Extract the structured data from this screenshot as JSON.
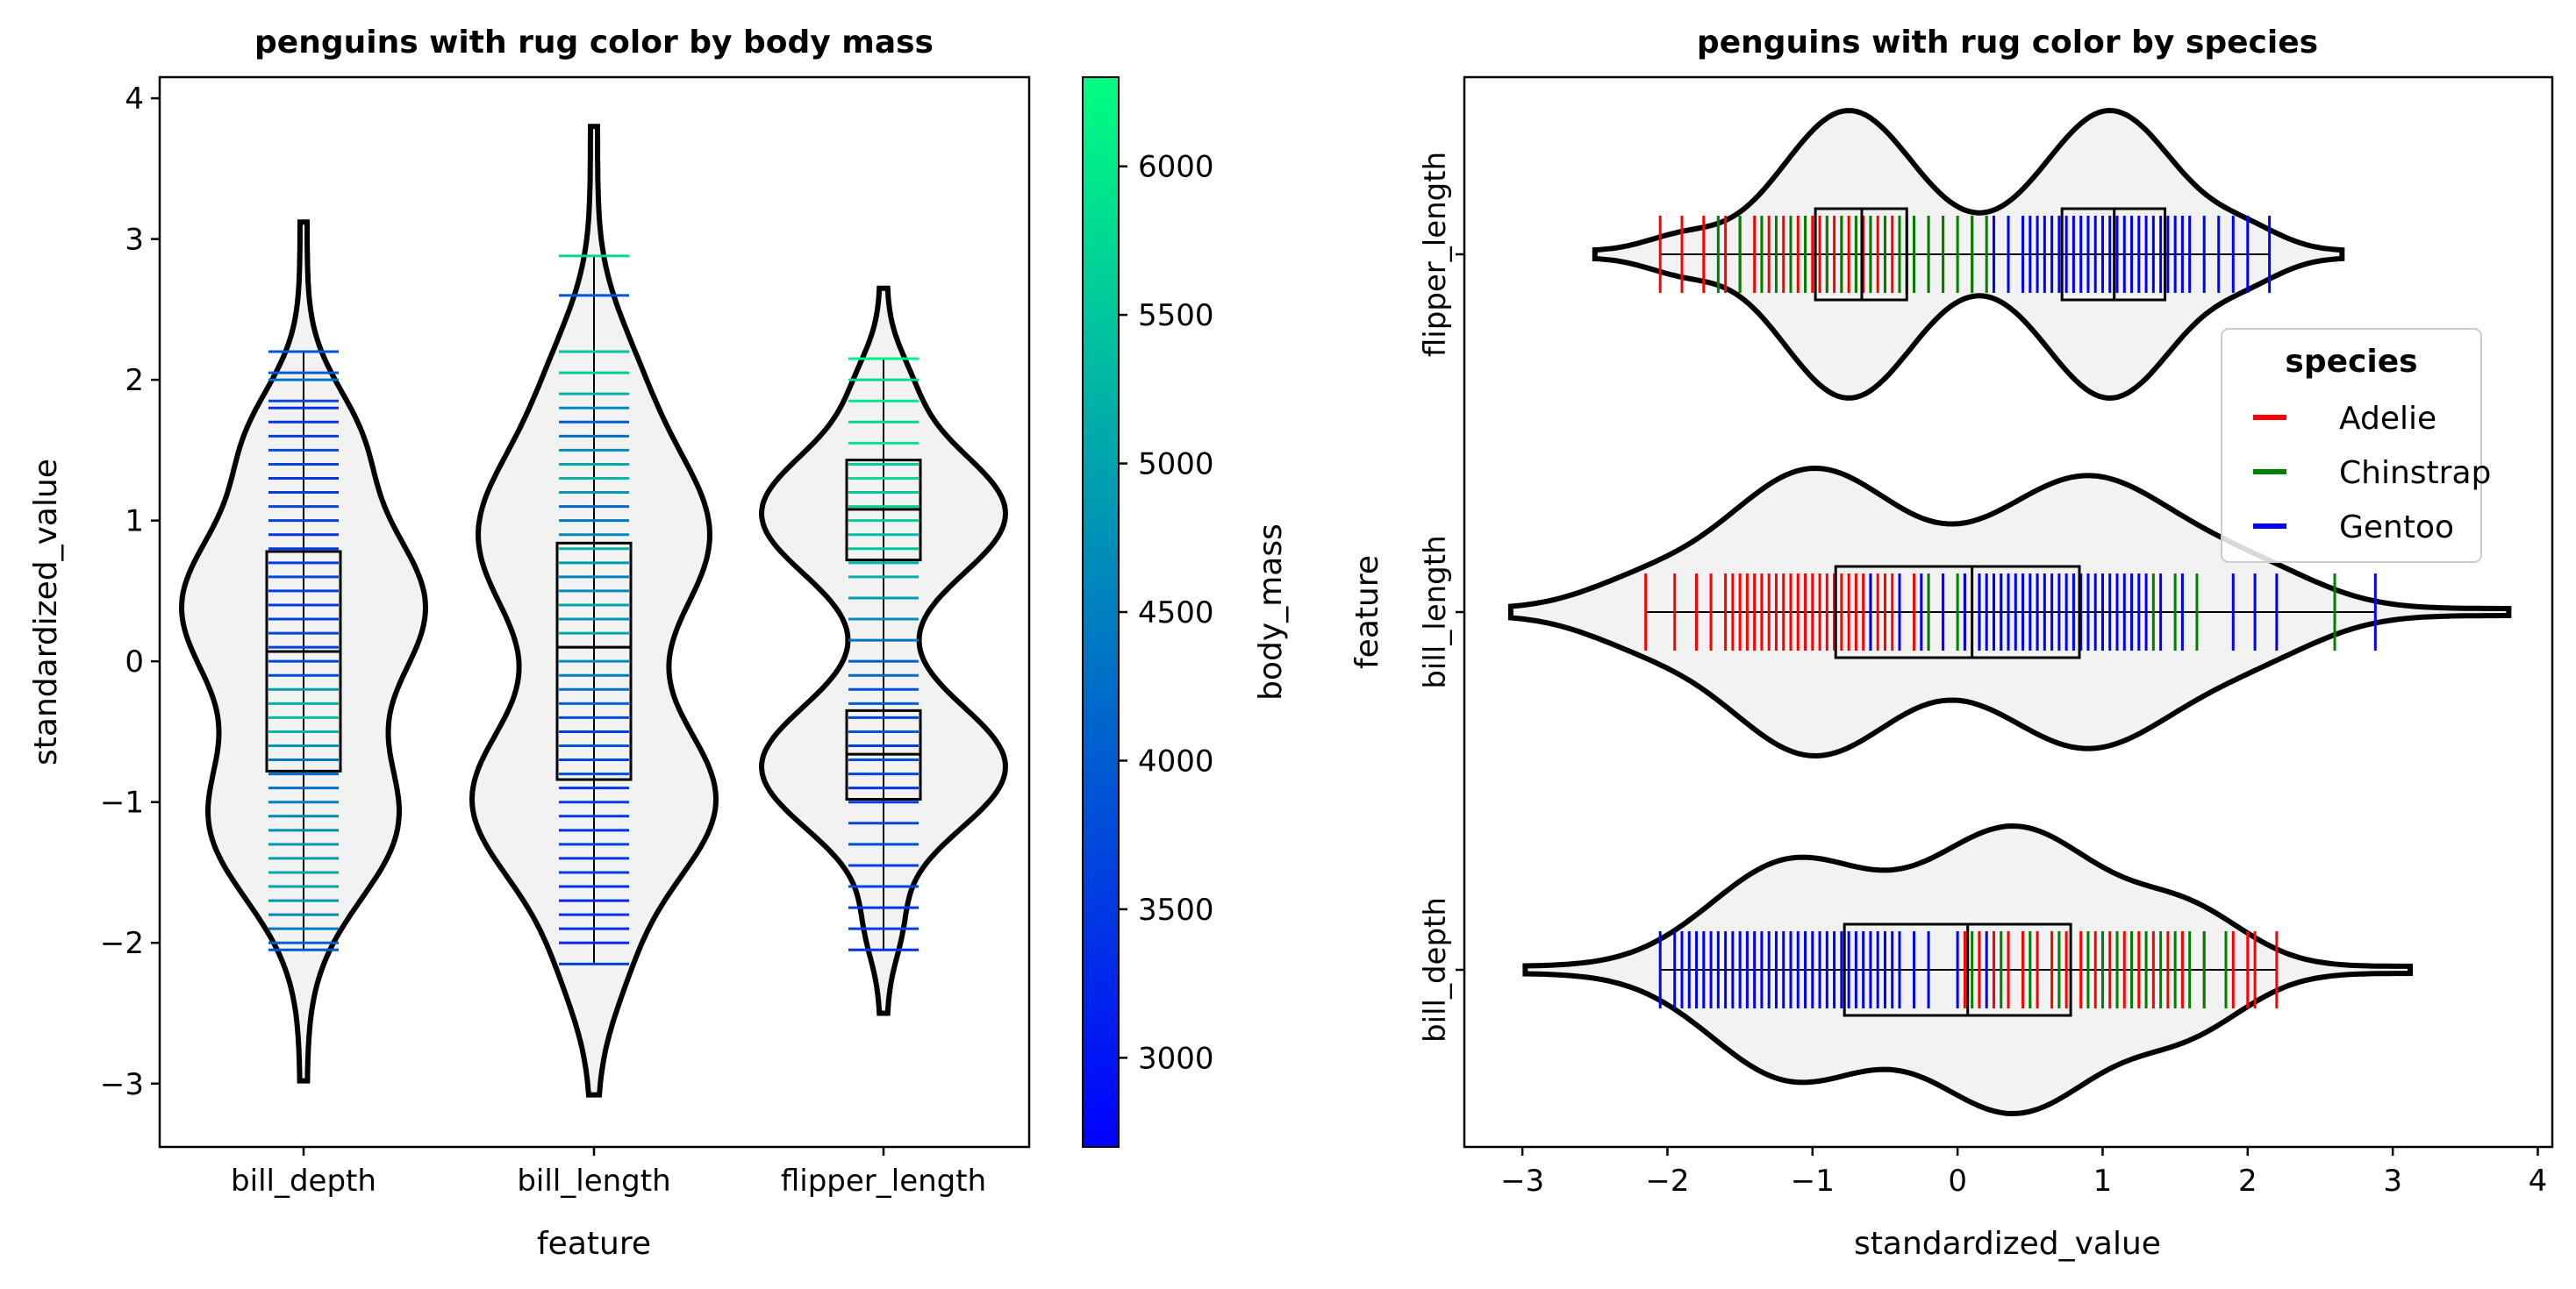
{
  "chart_data": [
    {
      "type": "violin",
      "title": "penguins with rug color by body mass",
      "orientation": "vertical",
      "xlabel": "feature",
      "ylabel": "standardized_value",
      "categories": [
        "bill_depth",
        "bill_length",
        "flipper_length"
      ],
      "ylim": [
        -3.45,
        4.15
      ],
      "yticks": [
        -3,
        -2,
        -1,
        0,
        1,
        2,
        3,
        4
      ],
      "ytick_labels": [
        "−3",
        "−2",
        "−1",
        "0",
        "1",
        "2",
        "3",
        "4"
      ],
      "rug_color_variable": "body_mass",
      "violins": [
        {
          "category": "bill_depth",
          "min": -2.05,
          "max": 2.2,
          "q1": -0.78,
          "median": 0.07,
          "q3": 0.78,
          "tail_low": -2.98,
          "tail_high": 3.12,
          "rug": [
            [
              -2.05,
              3900
            ],
            [
              -2.0,
              4100
            ],
            [
              -1.9,
              4400
            ],
            [
              -1.8,
              4600
            ],
            [
              -1.7,
              4800
            ],
            [
              -1.6,
              5000
            ],
            [
              -1.5,
              5100
            ],
            [
              -1.4,
              4900
            ],
            [
              -1.3,
              4800
            ],
            [
              -1.2,
              4700
            ],
            [
              -1.1,
              4600
            ],
            [
              -1.0,
              4500
            ],
            [
              -0.9,
              4300
            ],
            [
              -0.8,
              4200
            ],
            [
              -0.7,
              4400
            ],
            [
              -0.6,
              4800
            ],
            [
              -0.5,
              5300
            ],
            [
              -0.4,
              5400
            ],
            [
              -0.3,
              5200
            ],
            [
              -0.2,
              4900
            ],
            [
              -0.1,
              3800
            ],
            [
              0.0,
              3700
            ],
            [
              0.1,
              3600
            ],
            [
              0.2,
              3700
            ],
            [
              0.3,
              3600
            ],
            [
              0.4,
              3500
            ],
            [
              0.5,
              3600
            ],
            [
              0.6,
              3700
            ],
            [
              0.7,
              3600
            ],
            [
              0.8,
              3500
            ],
            [
              0.9,
              3400
            ],
            [
              1.0,
              3600
            ],
            [
              1.1,
              3700
            ],
            [
              1.2,
              3600
            ],
            [
              1.3,
              3500
            ],
            [
              1.4,
              3700
            ],
            [
              1.5,
              3800
            ],
            [
              1.6,
              3600
            ],
            [
              1.7,
              3500
            ],
            [
              1.8,
              3400
            ],
            [
              1.85,
              3700
            ],
            [
              2.0,
              4300
            ],
            [
              2.05,
              4000
            ],
            [
              2.2,
              3900
            ]
          ]
        },
        {
          "category": "bill_length",
          "min": -2.15,
          "max": 2.88,
          "q1": -0.84,
          "median": 0.1,
          "q3": 0.84,
          "tail_low": -3.08,
          "tail_high": 3.8,
          "rug": [
            [
              -2.15,
              3600
            ],
            [
              -2.0,
              3300
            ],
            [
              -1.9,
              3400
            ],
            [
              -1.8,
              3500
            ],
            [
              -1.7,
              3300
            ],
            [
              -1.6,
              3400
            ],
            [
              -1.5,
              3600
            ],
            [
              -1.4,
              3500
            ],
            [
              -1.3,
              3700
            ],
            [
              -1.2,
              3400
            ],
            [
              -1.1,
              3500
            ],
            [
              -1.0,
              3600
            ],
            [
              -0.9,
              3500
            ],
            [
              -0.8,
              3800
            ],
            [
              -0.7,
              3700
            ],
            [
              -0.6,
              3900
            ],
            [
              -0.5,
              3600
            ],
            [
              -0.4,
              3800
            ],
            [
              -0.3,
              4100
            ],
            [
              -0.2,
              4300
            ],
            [
              -0.1,
              4500
            ],
            [
              0.0,
              4700
            ],
            [
              0.1,
              4900
            ],
            [
              0.2,
              5100
            ],
            [
              0.3,
              4800
            ],
            [
              0.4,
              5000
            ],
            [
              0.5,
              4700
            ],
            [
              0.6,
              4500
            ],
            [
              0.7,
              4900
            ],
            [
              0.8,
              5200
            ],
            [
              0.9,
              4600
            ],
            [
              1.0,
              4400
            ],
            [
              1.1,
              4200
            ],
            [
              1.2,
              4800
            ],
            [
              1.3,
              5300
            ],
            [
              1.4,
              5100
            ],
            [
              1.5,
              4700
            ],
            [
              1.6,
              4300
            ],
            [
              1.7,
              4000
            ],
            [
              1.8,
              4600
            ],
            [
              1.9,
              5200
            ],
            [
              2.05,
              5600
            ],
            [
              2.2,
              5500
            ],
            [
              2.6,
              3900
            ],
            [
              2.88,
              5700
            ]
          ]
        },
        {
          "category": "flipper_length",
          "min": -2.05,
          "max": 2.15,
          "q1": -0.98,
          "median": -0.66,
          "q3": -0.35,
          "q1b": 0.72,
          "medianb": 1.08,
          "q3b": 1.43,
          "tail_low": -2.5,
          "tail_high": 2.65,
          "rug": [
            [
              -2.05,
              3400
            ],
            [
              -1.9,
              3600
            ],
            [
              -1.75,
              3500
            ],
            [
              -1.6,
              3700
            ],
            [
              -1.45,
              3600
            ],
            [
              -1.3,
              3800
            ],
            [
              -1.15,
              3700
            ],
            [
              -1.0,
              3600
            ],
            [
              -0.9,
              3500
            ],
            [
              -0.8,
              3700
            ],
            [
              -0.7,
              3800
            ],
            [
              -0.6,
              3600
            ],
            [
              -0.5,
              3900
            ],
            [
              -0.4,
              3700
            ],
            [
              -0.3,
              4000
            ],
            [
              -0.2,
              3800
            ],
            [
              -0.1,
              4200
            ],
            [
              0.0,
              4000
            ],
            [
              0.15,
              4300
            ],
            [
              0.3,
              4700
            ],
            [
              0.45,
              4900
            ],
            [
              0.6,
              5200
            ],
            [
              0.7,
              5300
            ],
            [
              0.8,
              5500
            ],
            [
              0.9,
              5400
            ],
            [
              1.0,
              5600
            ],
            [
              1.1,
              5700
            ],
            [
              1.2,
              5500
            ],
            [
              1.3,
              5800
            ],
            [
              1.4,
              5600
            ],
            [
              1.55,
              5900
            ],
            [
              1.7,
              5700
            ],
            [
              1.85,
              6000
            ],
            [
              2.0,
              5800
            ],
            [
              2.15,
              6100
            ]
          ]
        }
      ],
      "colorbar": {
        "label": "body_mass",
        "range": [
          2700,
          6300
        ],
        "ticks": [
          3000,
          3500,
          4000,
          4500,
          5000,
          5500,
          6000
        ],
        "tick_labels": [
          "3000",
          "3500",
          "4000",
          "4500",
          "5000",
          "5500",
          "6000"
        ],
        "color_low": "#0000ff",
        "color_high": "#00ff80"
      }
    },
    {
      "type": "violin",
      "title": "penguins with rug color by species",
      "orientation": "horizontal",
      "xlabel": "standardized_value",
      "ylabel": "feature",
      "categories": [
        "flipper_length",
        "bill_length",
        "bill_depth"
      ],
      "xlim": [
        -3.4,
        4.1
      ],
      "xticks": [
        -3,
        -2,
        -1,
        0,
        1,
        2,
        3,
        4
      ],
      "xtick_labels": [
        "−3",
        "−2",
        "−1",
        "0",
        "1",
        "2",
        "3",
        "4"
      ],
      "legend": {
        "title": "species",
        "position": "center-right",
        "entries": [
          {
            "label": "Adelie",
            "color": "#ff0000"
          },
          {
            "label": "Chinstrap",
            "color": "#008000"
          },
          {
            "label": "Gentoo",
            "color": "#0000ff"
          }
        ]
      },
      "violins": [
        {
          "category": "flipper_length",
          "min": -2.05,
          "max": 2.15,
          "q1": -0.98,
          "median": -0.66,
          "q3": -0.35,
          "q1b": 0.72,
          "medianb": 1.08,
          "q3b": 1.43,
          "tail_low": -2.5,
          "tail_high": 2.65,
          "rug": {
            "Adelie": [
              -2.05,
              -1.9,
              -1.75,
              -1.6,
              -1.5,
              -1.4,
              -1.3,
              -1.2,
              -1.1,
              -1.0,
              -0.95,
              -0.9,
              -0.85,
              -0.8,
              -0.75,
              -0.7,
              -0.65,
              -0.6,
              -0.55,
              -0.5,
              -0.45,
              -0.4,
              -0.3,
              -0.2,
              -0.1,
              0.1
            ],
            "Chinstrap": [
              -1.65,
              -1.5,
              -1.35,
              -1.25,
              -1.15,
              -1.05,
              -0.9,
              -0.8,
              -0.7,
              -0.6,
              -0.5,
              -0.4,
              -0.35,
              -0.3,
              -0.2,
              -0.1,
              0.0,
              0.1,
              0.2,
              0.35
            ],
            "Gentoo": [
              0.25,
              0.35,
              0.45,
              0.5,
              0.55,
              0.6,
              0.65,
              0.7,
              0.75,
              0.8,
              0.85,
              0.9,
              0.95,
              1.0,
              1.05,
              1.1,
              1.15,
              1.2,
              1.25,
              1.3,
              1.35,
              1.4,
              1.45,
              1.5,
              1.55,
              1.6,
              1.7,
              1.8,
              1.9,
              2.0,
              2.15
            ]
          }
        },
        {
          "category": "bill_length",
          "min": -2.15,
          "max": 2.88,
          "q1": -0.84,
          "median": 0.1,
          "q3": 0.84,
          "tail_low": -3.08,
          "tail_high": 3.8,
          "rug": {
            "Adelie": [
              -2.15,
              -1.95,
              -1.8,
              -1.7,
              -1.6,
              -1.55,
              -1.5,
              -1.45,
              -1.4,
              -1.35,
              -1.3,
              -1.25,
              -1.2,
              -1.15,
              -1.1,
              -1.05,
              -1.0,
              -0.95,
              -0.9,
              -0.85,
              -0.8,
              -0.75,
              -0.7,
              -0.65,
              -0.6,
              -0.55,
              -0.5,
              -0.45,
              -0.4,
              -0.3,
              -0.2,
              -0.1,
              0.05,
              0.15
            ],
            "Chinstrap": [
              -0.2,
              0.0,
              0.3,
              0.55,
              0.8,
              1.0,
              1.2,
              1.35,
              1.5,
              1.65,
              2.6
            ],
            "Gentoo": [
              -0.6,
              -0.4,
              -0.25,
              -0.1,
              0.05,
              0.15,
              0.2,
              0.25,
              0.3,
              0.35,
              0.4,
              0.45,
              0.5,
              0.55,
              0.6,
              0.65,
              0.7,
              0.75,
              0.8,
              0.85,
              0.9,
              0.95,
              1.0,
              1.05,
              1.1,
              1.15,
              1.2,
              1.25,
              1.3,
              1.4,
              1.55,
              1.9,
              2.05,
              2.2,
              2.88
            ]
          }
        },
        {
          "category": "bill_depth",
          "min": -2.05,
          "max": 2.2,
          "q1": -0.78,
          "median": 0.07,
          "q3": 0.78,
          "tail_low": -2.98,
          "tail_high": 3.12,
          "rug": {
            "Adelie": [
              0.05,
              0.15,
              0.25,
              0.35,
              0.45,
              0.55,
              0.65,
              0.75,
              0.85,
              0.95,
              1.05,
              1.15,
              1.25,
              1.35,
              1.45,
              1.55,
              1.7,
              1.9,
              2.0,
              2.05,
              2.2
            ],
            "Chinstrap": [
              0.1,
              0.3,
              0.5,
              0.7,
              0.9,
              1.0,
              1.1,
              1.2,
              1.3,
              1.4,
              1.5,
              1.6,
              1.7,
              1.85
            ],
            "Gentoo": [
              -2.05,
              -1.95,
              -1.9,
              -1.85,
              -1.8,
              -1.75,
              -1.7,
              -1.65,
              -1.6,
              -1.55,
              -1.5,
              -1.45,
              -1.4,
              -1.35,
              -1.3,
              -1.25,
              -1.2,
              -1.15,
              -1.1,
              -1.05,
              -1.0,
              -0.95,
              -0.9,
              -0.85,
              -0.8,
              -0.75,
              -0.7,
              -0.65,
              -0.6,
              -0.55,
              -0.5,
              -0.45,
              -0.4,
              -0.3,
              -0.2,
              0.0,
              0.2
            ]
          }
        }
      ]
    }
  ]
}
